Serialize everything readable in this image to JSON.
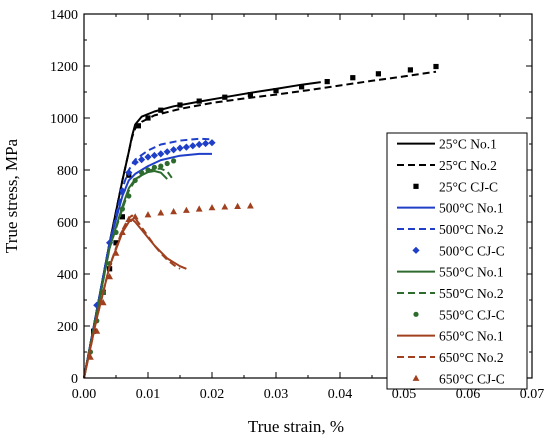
{
  "chart_data": {
    "type": "line",
    "xlabel": "True strain, %",
    "ylabel": "True stress, MPa",
    "xlim": [
      0,
      0.07
    ],
    "ylim": [
      0,
      1400
    ],
    "xticks": [
      "0.00",
      "0.01",
      "0.02",
      "0.03",
      "0.04",
      "0.05",
      "0.06",
      "0.07"
    ],
    "yticks": [
      "0",
      "200",
      "400",
      "600",
      "800",
      "1000",
      "1200",
      "1400"
    ],
    "legend_position": "right",
    "series": [
      {
        "name": "25°C No.1",
        "color": "#000000",
        "style": "solid",
        "x": [
          0,
          0.002,
          0.004,
          0.006,
          0.007,
          0.0075,
          0.008,
          0.009,
          0.011,
          0.014,
          0.018,
          0.022,
          0.026,
          0.03,
          0.034,
          0.037
        ],
        "y": [
          0,
          260,
          520,
          760,
          870,
          930,
          975,
          1005,
          1025,
          1045,
          1063,
          1080,
          1097,
          1112,
          1128,
          1138
        ]
      },
      {
        "name": "25°C No.2",
        "color": "#000000",
        "style": "dashed",
        "x": [
          0,
          0.002,
          0.004,
          0.006,
          0.007,
          0.0075,
          0.008,
          0.009,
          0.011,
          0.015,
          0.02,
          0.025,
          0.03,
          0.035,
          0.04,
          0.045,
          0.05,
          0.055
        ],
        "y": [
          0,
          260,
          520,
          760,
          870,
          925,
          960,
          985,
          1010,
          1035,
          1058,
          1075,
          1090,
          1107,
          1125,
          1143,
          1160,
          1178
        ]
      },
      {
        "name": "25°C CJ-C",
        "color": "#000000",
        "style": "square",
        "x": [
          0.0015,
          0.003,
          0.004,
          0.005,
          0.006,
          0.007,
          0.0085,
          0.01,
          0.012,
          0.015,
          0.018,
          0.022,
          0.026,
          0.03,
          0.034,
          0.038,
          0.042,
          0.046,
          0.051,
          0.055
        ],
        "y": [
          180,
          330,
          420,
          520,
          620,
          780,
          970,
          1000,
          1030,
          1050,
          1065,
          1080,
          1090,
          1105,
          1120,
          1140,
          1155,
          1170,
          1185,
          1198
        ]
      },
      {
        "name": "500°C No.1",
        "color": "#1f3fc8",
        "style": "solid",
        "x": [
          0,
          0.002,
          0.004,
          0.006,
          0.007,
          0.008,
          0.01,
          0.012,
          0.015,
          0.018,
          0.02
        ],
        "y": [
          0,
          260,
          520,
          700,
          760,
          785,
          815,
          838,
          855,
          862,
          862
        ]
      },
      {
        "name": "500°C No.2",
        "color": "#1f3fc8",
        "style": "dashed",
        "x": [
          0,
          0.002,
          0.004,
          0.006,
          0.007,
          0.008,
          0.01,
          0.012,
          0.015,
          0.018,
          0.02
        ],
        "y": [
          0,
          260,
          520,
          730,
          800,
          840,
          875,
          898,
          913,
          920,
          918
        ]
      },
      {
        "name": "500°C CJ-C",
        "color": "#1f3fc8",
        "style": "diamond",
        "x": [
          0.002,
          0.004,
          0.006,
          0.007,
          0.008,
          0.009,
          0.01,
          0.011,
          0.012,
          0.013,
          0.014,
          0.015,
          0.016,
          0.017,
          0.018,
          0.019,
          0.02
        ],
        "y": [
          280,
          520,
          720,
          790,
          830,
          840,
          850,
          856,
          862,
          870,
          878,
          884,
          888,
          893,
          898,
          902,
          905
        ]
      },
      {
        "name": "550°C No.1",
        "color": "#2e6b2e",
        "style": "solid",
        "x": [
          0,
          0.002,
          0.004,
          0.006,
          0.007,
          0.008,
          0.009,
          0.01,
          0.011,
          0.012,
          0.013
        ],
        "y": [
          0,
          250,
          500,
          660,
          730,
          765,
          780,
          792,
          796,
          790,
          765
        ]
      },
      {
        "name": "550°C No.2",
        "color": "#2e6b2e",
        "style": "dashed",
        "x": [
          0,
          0.002,
          0.004,
          0.006,
          0.007,
          0.008,
          0.009,
          0.01,
          0.011,
          0.012,
          0.013,
          0.014
        ],
        "y": [
          0,
          250,
          500,
          650,
          720,
          760,
          780,
          795,
          805,
          805,
          795,
          760
        ]
      },
      {
        "name": "550°C CJ-C",
        "color": "#2e6b2e",
        "style": "circle",
        "x": [
          0.001,
          0.002,
          0.003,
          0.004,
          0.005,
          0.006,
          0.007,
          0.008,
          0.009,
          0.01,
          0.011,
          0.012,
          0.013,
          0.014
        ],
        "y": [
          100,
          220,
          330,
          440,
          560,
          650,
          700,
          760,
          790,
          800,
          810,
          815,
          825,
          835
        ]
      },
      {
        "name": "650°C No.1",
        "color": "#a0401f",
        "style": "solid",
        "x": [
          0,
          0.002,
          0.004,
          0.006,
          0.007,
          0.0075,
          0.008,
          0.009,
          0.01,
          0.011,
          0.012,
          0.013,
          0.014,
          0.015,
          0.016
        ],
        "y": [
          0,
          230,
          430,
          560,
          600,
          610,
          600,
          570,
          540,
          510,
          485,
          460,
          445,
          430,
          420
        ]
      },
      {
        "name": "650°C No.2",
        "color": "#a0401f",
        "style": "dashed",
        "x": [
          0,
          0.002,
          0.004,
          0.006,
          0.007,
          0.0075,
          0.008,
          0.009,
          0.01,
          0.011,
          0.012,
          0.013,
          0.014,
          0.015
        ],
        "y": [
          0,
          230,
          430,
          570,
          615,
          625,
          615,
          580,
          545,
          510,
          480,
          455,
          435,
          420
        ]
      },
      {
        "name": "650°C CJ-C",
        "color": "#a0401f",
        "style": "triangle",
        "x": [
          0.001,
          0.002,
          0.003,
          0.004,
          0.005,
          0.006,
          0.007,
          0.008,
          0.01,
          0.012,
          0.014,
          0.016,
          0.018,
          0.02,
          0.022,
          0.024,
          0.026
        ],
        "y": [
          80,
          180,
          290,
          390,
          480,
          560,
          610,
          620,
          628,
          635,
          640,
          645,
          650,
          655,
          658,
          660,
          662
        ]
      }
    ]
  }
}
